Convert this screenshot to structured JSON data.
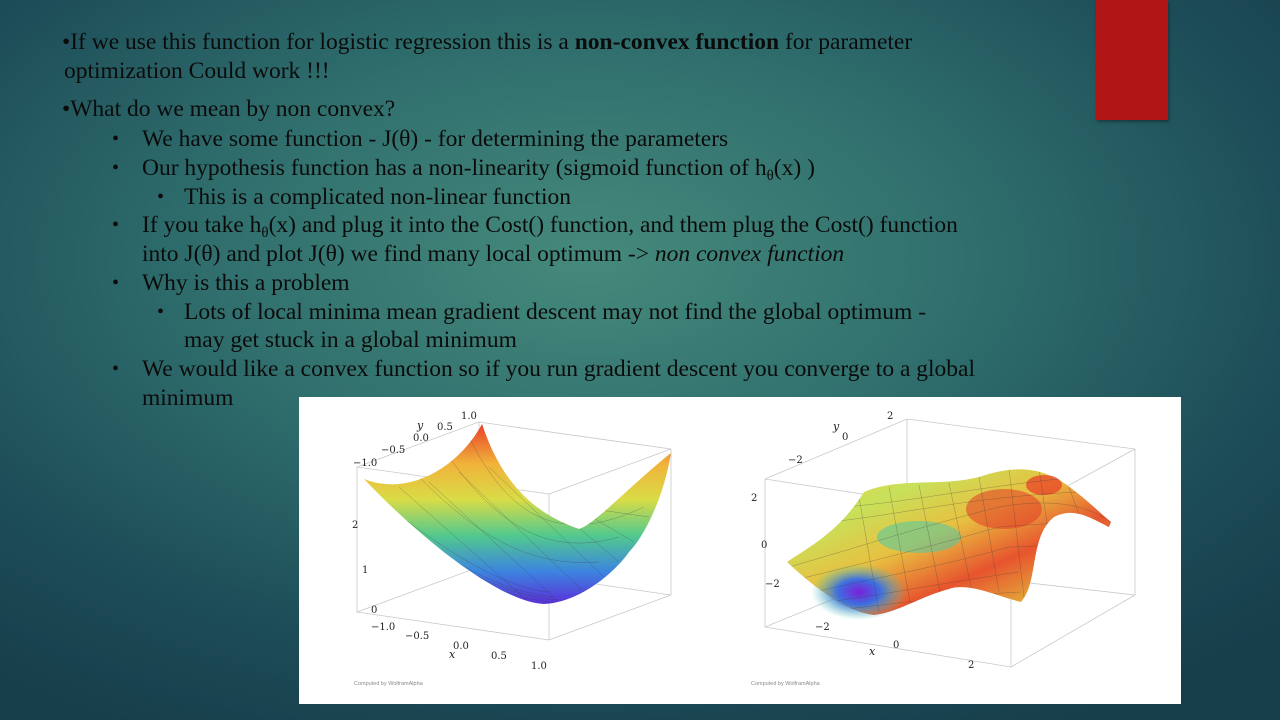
{
  "slide": {
    "p1_a": "•If we use this function for logistic regression this is a ",
    "p1_bold": "non-convex function",
    "p1_b": " for parameter",
    "p1_line2": "optimization    Could work !!!",
    "p2": "•What do we mean by non convex?",
    "bullet_dot": "•",
    "b1": "We have some function - J(θ) - for determining the parameters",
    "b2_a": "Our hypothesis function has a non-linearity (sigmoid function of h",
    "b2_sub": "θ",
    "b2_b": "(x) )",
    "b2_1": "This is a complicated non-linear function",
    "b3_a": "If you take h",
    "b3_sub": "θ",
    "b3_b": "(x) and plug it into the Cost() function, and them plug the Cost() function",
    "b3_line2_a": "into J(θ) and plot J(θ) we find many local optimum -> ",
    "b3_line2_em": "non convex function",
    "b4": "Why is this a problem",
    "b4_1_line1": "Lots of local minima mean gradient descent may not find the global optimum -",
    "b4_1_line2": "may get stuck in a global minimum",
    "b5_line1": "We would like a convex function so if you run gradient descent you converge to a global",
    "b5_line2": "minimum"
  },
  "colors": {
    "accent": "#b01616",
    "figure_bg": "#ffffff"
  },
  "figure": {
    "credit": "Computed by WolframAlpha",
    "left_plot": {
      "y_label": "y",
      "x_label": "x",
      "y_ticks": [
        "1.0",
        "0.5",
        "0.0",
        "−0.5",
        "−1.0"
      ],
      "z_ticks": [
        "2",
        "1",
        "0"
      ],
      "x_ticks": [
        "−1.0",
        "−0.5",
        "0.0",
        "0.5",
        "1.0"
      ]
    },
    "right_plot": {
      "y_label": "y",
      "x_label": "x",
      "y_ticks": [
        "2",
        "0",
        "−2"
      ],
      "z_ticks": [
        "2",
        "0",
        "−2"
      ],
      "x_ticks": [
        "−2",
        "0",
        "2"
      ]
    }
  }
}
